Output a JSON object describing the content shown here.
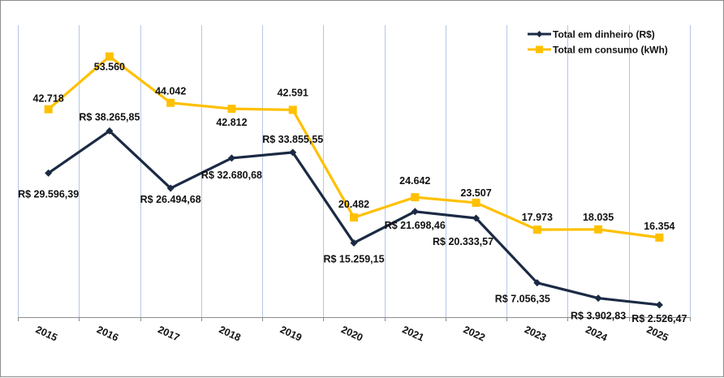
{
  "chart_data": {
    "type": "line",
    "title": "",
    "xlabel": "",
    "ylabel": "",
    "ylim": [
      0,
      60000
    ],
    "grid": "vertical",
    "legend_position": "top-right",
    "categories": [
      "2015",
      "2016",
      "2017",
      "2018",
      "2019",
      "2020",
      "2021",
      "2022",
      "2023",
      "2024",
      "2025"
    ],
    "series": [
      {
        "name": "Total em dinheiro (R$)",
        "color": "#1b2a44",
        "marker": "diamond",
        "values": [
          29596.39,
          38265.85,
          26494.68,
          32680.68,
          33855.55,
          15259.15,
          21698.46,
          20333.57,
          7056.35,
          3902.83,
          2526.47
        ],
        "labels": [
          "R$ 29.596,39",
          "R$ 38.265,85",
          "R$ 26.494,68",
          "R$ 32.680,68",
          "R$ 33.855,55",
          "R$ 15.259,15",
          "R$ 21.698,46",
          "R$ 20.333,57",
          "R$ 7.056,35",
          "R$ 3.902,83",
          "R$ 2.526,47"
        ]
      },
      {
        "name": "Total em consumo (kWh)",
        "color": "#ffc000",
        "marker": "square",
        "values": [
          42718,
          53560,
          44042,
          42812,
          42591,
          20482,
          24642,
          23507,
          17973,
          18035,
          16354
        ],
        "labels": [
          "42.718",
          "53.560",
          "44.042",
          "42.812",
          "42.591",
          "20.482",
          "24.642",
          "23.507",
          "17.973",
          "18.035",
          "16.354"
        ]
      }
    ]
  },
  "colors": {
    "gridline": "#b4c7e7",
    "axis": "#8c8c8c"
  }
}
